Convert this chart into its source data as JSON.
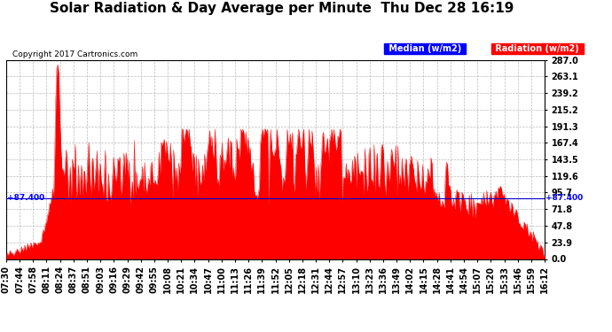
{
  "title": "Solar Radiation & Day Average per Minute  Thu Dec 28 16:19",
  "copyright": "Copyright 2017 Cartronics.com",
  "legend_median_label": "Median (w/m2)",
  "legend_radiation_label": "Radiation (w/m2)",
  "ymax": 287.0,
  "ymin": 0.0,
  "yticks": [
    0.0,
    23.9,
    47.8,
    71.8,
    95.7,
    119.6,
    143.5,
    167.4,
    191.3,
    215.2,
    239.2,
    263.1,
    287.0
  ],
  "hline_value": 87.4,
  "background_color": "#ffffff",
  "plot_bg_color": "#ffffff",
  "grid_color": "#bbbbbb",
  "fill_color": "#ff0000",
  "hline_color": "#0000cc",
  "title_fontsize": 11,
  "tick_fontsize": 7,
  "xtick_labels": [
    "07:30",
    "07:44",
    "07:58",
    "08:11",
    "08:24",
    "08:37",
    "08:51",
    "09:03",
    "09:16",
    "09:29",
    "09:42",
    "09:55",
    "10:08",
    "10:21",
    "10:34",
    "10:47",
    "11:00",
    "11:13",
    "11:26",
    "11:39",
    "11:52",
    "12:05",
    "12:18",
    "12:31",
    "12:44",
    "12:57",
    "13:10",
    "13:23",
    "13:36",
    "13:49",
    "14:02",
    "14:15",
    "14:28",
    "14:41",
    "14:54",
    "15:07",
    "15:20",
    "15:33",
    "15:46",
    "15:59",
    "16:12"
  ]
}
